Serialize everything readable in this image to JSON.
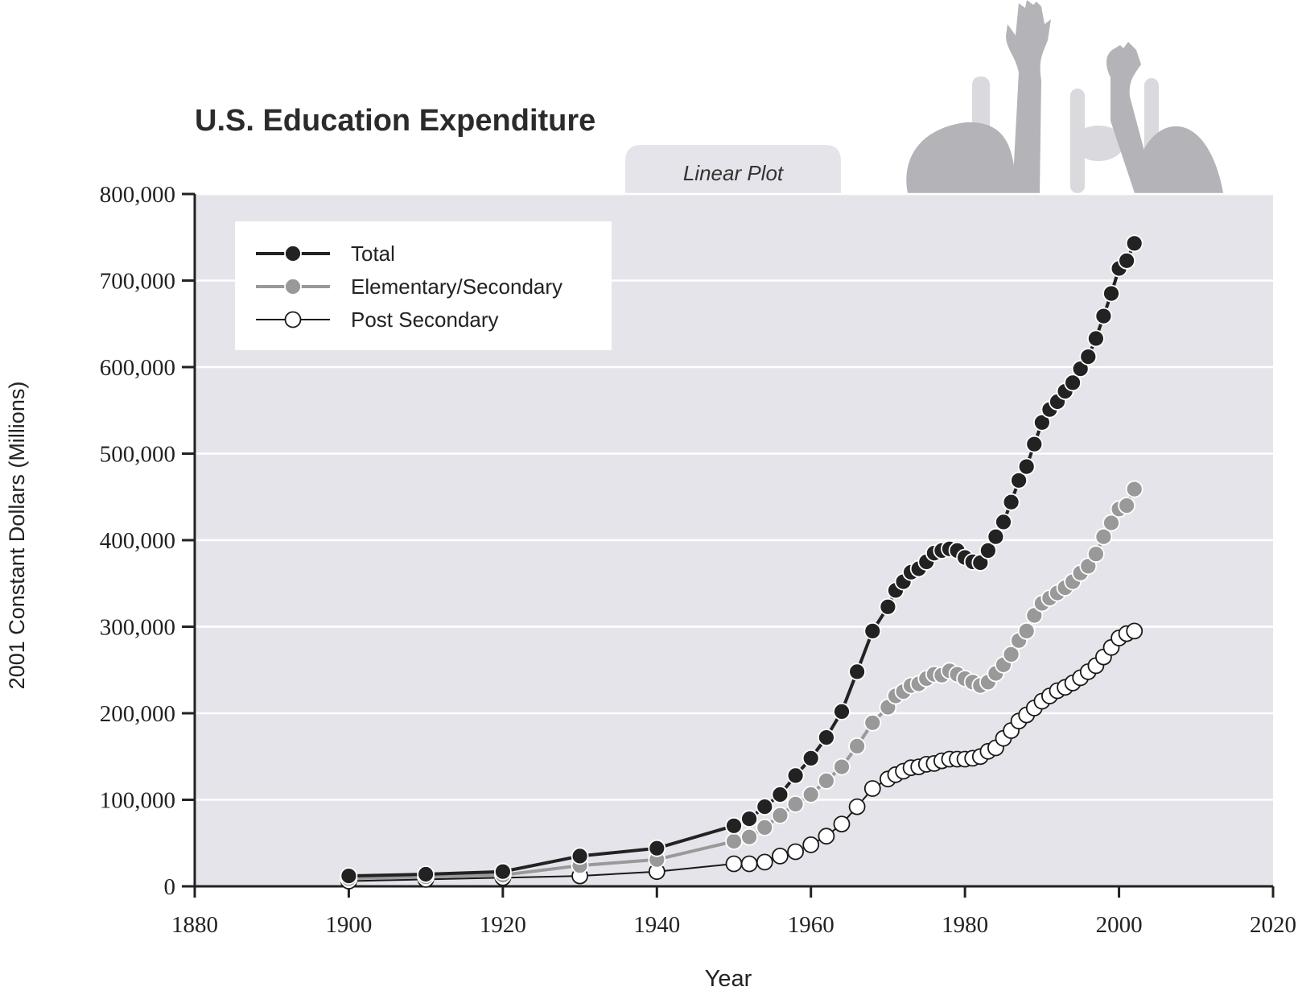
{
  "chart_data": {
    "type": "line",
    "title": "U.S. Education Expenditure",
    "subtitle": "Linear Plot",
    "xlabel": "Year",
    "ylabel": "2001 Constant Dollars (Millions)",
    "xlim": [
      1880,
      2020
    ],
    "ylim": [
      0,
      800000
    ],
    "x_ticks": [
      1880,
      1900,
      1920,
      1940,
      1960,
      1980,
      2000,
      2020
    ],
    "x_tick_labels": [
      "1880",
      "1900",
      "1920",
      "1940",
      "1960",
      "1980",
      "2000",
      "2020"
    ],
    "y_ticks": [
      0,
      100000,
      200000,
      300000,
      400000,
      500000,
      600000,
      700000,
      800000
    ],
    "y_tick_labels": [
      "0",
      "100,000",
      "200,000",
      "300,000",
      "400,000",
      "500,000",
      "600,000",
      "700,000",
      "800,000"
    ],
    "grid": "horizontal",
    "legend_position": "top-left",
    "colors": {
      "plot_bg": "#e4e4ea",
      "total": "#222222",
      "elementary": "#999999",
      "post": "#ffffff",
      "silhouette": "#b4b4b4"
    },
    "series": [
      {
        "name": "Total",
        "x": [
          1900,
          1910,
          1920,
          1930,
          1940,
          1950,
          1952,
          1954,
          1956,
          1958,
          1960,
          1962,
          1964,
          1966,
          1968,
          1970,
          1971,
          1972,
          1973,
          1974,
          1975,
          1976,
          1977,
          1978,
          1979,
          1980,
          1981,
          1982,
          1983,
          1984,
          1985,
          1986,
          1987,
          1988,
          1989,
          1990,
          1991,
          1992,
          1993,
          1994,
          1995,
          1996,
          1997,
          1998,
          1999,
          2000,
          2001,
          2002
        ],
        "y": [
          12000,
          14000,
          17000,
          35000,
          44000,
          70000,
          78000,
          92000,
          106000,
          128000,
          148000,
          172000,
          202000,
          248000,
          295000,
          323000,
          342000,
          352000,
          363000,
          367000,
          375000,
          385000,
          388000,
          390000,
          388000,
          380000,
          375000,
          374000,
          388000,
          404000,
          421000,
          444000,
          469000,
          485000,
          511000,
          536000,
          551000,
          560000,
          572000,
          582000,
          598000,
          612000,
          633000,
          659000,
          685000,
          714000,
          723000,
          743000
        ]
      },
      {
        "name": "Elementary/Secondary",
        "x": [
          1900,
          1910,
          1920,
          1930,
          1940,
          1950,
          1952,
          1954,
          1956,
          1958,
          1960,
          1962,
          1964,
          1966,
          1968,
          1970,
          1971,
          1972,
          1973,
          1974,
          1975,
          1976,
          1977,
          1978,
          1979,
          1980,
          1981,
          1982,
          1983,
          1984,
          1985,
          1986,
          1987,
          1988,
          1989,
          1990,
          1991,
          1992,
          1993,
          1994,
          1995,
          1996,
          1997,
          1998,
          1999,
          2000,
          2001,
          2002
        ],
        "y": [
          9000,
          11000,
          13000,
          24000,
          31000,
          52000,
          57000,
          68000,
          82000,
          95000,
          106000,
          122000,
          138000,
          162000,
          189000,
          207000,
          220000,
          225000,
          232000,
          234000,
          240000,
          245000,
          244000,
          249000,
          245000,
          240000,
          236000,
          232000,
          236000,
          246000,
          256000,
          268000,
          284000,
          295000,
          313000,
          327000,
          333000,
          339000,
          345000,
          352000,
          362000,
          370000,
          384000,
          404000,
          420000,
          436000,
          440000,
          459000
        ]
      },
      {
        "name": "Post Secondary",
        "x": [
          1900,
          1910,
          1920,
          1930,
          1940,
          1950,
          1952,
          1954,
          1956,
          1958,
          1960,
          1962,
          1964,
          1966,
          1968,
          1970,
          1971,
          1972,
          1973,
          1974,
          1975,
          1976,
          1977,
          1978,
          1979,
          1980,
          1981,
          1982,
          1983,
          1984,
          1985,
          1986,
          1987,
          1988,
          1989,
          1990,
          1991,
          1992,
          1993,
          1994,
          1995,
          1996,
          1997,
          1998,
          1999,
          2000,
          2001,
          2002
        ],
        "y": [
          6000,
          8000,
          10000,
          12000,
          17000,
          26000,
          26000,
          28000,
          35000,
          40000,
          48000,
          58000,
          72000,
          92000,
          113000,
          124000,
          129000,
          133000,
          137000,
          138000,
          141000,
          142000,
          145000,
          147000,
          147000,
          147000,
          148000,
          150000,
          156000,
          160000,
          171000,
          180000,
          191000,
          198000,
          206000,
          214000,
          220000,
          226000,
          230000,
          235000,
          241000,
          248000,
          255000,
          265000,
          276000,
          287000,
          292000,
          295000
        ]
      }
    ]
  }
}
